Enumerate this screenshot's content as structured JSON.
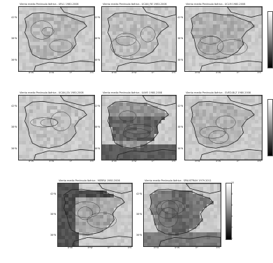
{
  "figure": {
    "panels": [
      {
        "id": "p1",
        "title": "Viento medio Península Ibérica - URL1 1980-2008",
        "pattern": 1,
        "base": 185
      },
      {
        "id": "p2",
        "title": "Viento medio Península Ibérica - UCAN_RE 1980-2008",
        "pattern": 2,
        "base": 190
      },
      {
        "id": "p3",
        "title": "Viento medio Península Ibérica - UCLM 1980-2008",
        "pattern": 3,
        "base": 175
      },
      {
        "id": "p4",
        "title": "Viento medio Península Ibérica - UCAN_EA 1980-2008",
        "pattern": 4,
        "base": 195
      },
      {
        "id": "p5",
        "title": "Viento medio Península Ibérica - UAH5 1980-2008",
        "pattern": 5,
        "base": 150
      },
      {
        "id": "p6",
        "title": "Viento medio Península Ibérica - GVED-BLZ 1980-2008",
        "pattern": 6,
        "base": 180
      },
      {
        "id": "p7",
        "title": "Viento medio Península Ibérica - MERRA 1980-2008",
        "pattern": 7,
        "base": 165
      },
      {
        "id": "p8",
        "title": "Viento medio Península Ibérica - SPAUSTRAH 1979-2011",
        "pattern": 8,
        "base": 140
      }
    ],
    "lat_ticks": [
      "42ºN",
      "38ºN",
      "36ºN"
    ],
    "lon_ticks": [
      "8ºW",
      "4ºW",
      "0º",
      "4ºE"
    ],
    "colorbar_labels": [
      "10",
      "8",
      "6",
      "4",
      "2",
      "0"
    ],
    "colors": {
      "land_light": "#d9d9d9",
      "sea": "#bdbdbd",
      "contour": "#222222"
    }
  }
}
